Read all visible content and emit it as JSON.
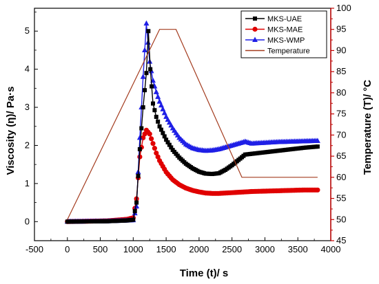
{
  "chart_data": {
    "type": "line",
    "xlabel": "Time (t)/ s",
    "ylabel": "Viscosity (η)/ Pa·s",
    "y2label": "Temperature (T)/ °C",
    "xlim": [
      -500,
      4000
    ],
    "ylim": [
      -0.5,
      5.6
    ],
    "y2lim": [
      45,
      100
    ],
    "xticks": [
      "-500",
      "0",
      "500",
      "1000",
      "1500",
      "2000",
      "2500",
      "3000",
      "3500",
      "4000"
    ],
    "yticks": [
      "0",
      "1",
      "2",
      "3",
      "4",
      "5"
    ],
    "y2ticks": [
      "45",
      "50",
      "55",
      "60",
      "65",
      "70",
      "75",
      "80",
      "85",
      "90",
      "95",
      "100"
    ],
    "legend_position": "top-right",
    "colors": {
      "uae": "#000000",
      "mae": "#e00000",
      "wmp": "#1f1fe6",
      "temperature": "#a33b1e"
    },
    "series": [
      {
        "name": "MKS-UAE",
        "axis": "left",
        "marker": "square",
        "x": [
          0,
          600,
          900,
          1000,
          1050,
          1100,
          1150,
          1200,
          1230,
          1260,
          1300,
          1350,
          1400,
          1500,
          1600,
          1700,
          1800,
          1900,
          2000,
          2100,
          2200,
          2300,
          2400,
          2500,
          2600,
          2700,
          2800,
          3000,
          3200,
          3400,
          3600,
          3800
        ],
        "y": [
          0,
          0.01,
          0.03,
          0.05,
          0.5,
          1.9,
          3.0,
          3.9,
          5.0,
          4.0,
          3.1,
          2.75,
          2.5,
          2.15,
          1.88,
          1.68,
          1.52,
          1.4,
          1.31,
          1.26,
          1.25,
          1.27,
          1.36,
          1.48,
          1.62,
          1.76,
          1.78,
          1.82,
          1.86,
          1.9,
          1.94,
          1.97
        ]
      },
      {
        "name": "MKS-MAE",
        "axis": "left",
        "marker": "circle",
        "x": [
          0,
          600,
          900,
          1000,
          1050,
          1100,
          1150,
          1200,
          1250,
          1300,
          1350,
          1400,
          1500,
          1600,
          1700,
          1800,
          1900,
          2000,
          2100,
          2200,
          2300,
          2400,
          2500,
          2600,
          2700,
          2800,
          3000,
          3200,
          3400,
          3600,
          3800
        ],
        "y": [
          0,
          0.02,
          0.06,
          0.1,
          0.6,
          1.7,
          2.2,
          2.4,
          2.3,
          2.05,
          1.8,
          1.6,
          1.3,
          1.1,
          0.97,
          0.88,
          0.82,
          0.78,
          0.75,
          0.74,
          0.74,
          0.75,
          0.76,
          0.77,
          0.78,
          0.79,
          0.8,
          0.81,
          0.82,
          0.83,
          0.83
        ]
      },
      {
        "name": "MKS-WMP",
        "axis": "left",
        "marker": "triangle",
        "x": [
          0,
          600,
          900,
          1000,
          1050,
          1100,
          1150,
          1200,
          1250,
          1300,
          1350,
          1400,
          1500,
          1600,
          1700,
          1800,
          1900,
          2000,
          2100,
          2200,
          2300,
          2400,
          2500,
          2600,
          2700,
          2800,
          3000,
          3200,
          3400,
          3600,
          3800
        ],
        "y": [
          0,
          0.01,
          0.03,
          0.04,
          0.4,
          2.2,
          3.8,
          5.2,
          4.2,
          3.7,
          3.4,
          3.15,
          2.75,
          2.45,
          2.2,
          2.03,
          1.93,
          1.88,
          1.86,
          1.87,
          1.9,
          1.95,
          2.0,
          2.05,
          2.1,
          2.05,
          2.07,
          2.09,
          2.1,
          2.11,
          2.12
        ]
      },
      {
        "name": "Temperature",
        "axis": "right",
        "marker": "none",
        "x": [
          0,
          1400,
          1650,
          2650,
          3800
        ],
        "y": [
          50,
          95,
          95,
          60,
          60
        ]
      }
    ]
  }
}
